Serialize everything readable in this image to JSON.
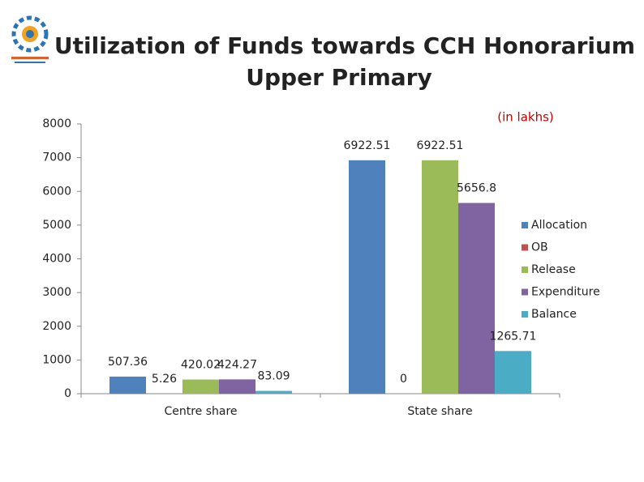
{
  "chart_data": {
    "type": "bar",
    "title": "Utilization of Funds towards CCH Honorarium",
    "subtitle": "Upper Primary",
    "note": "(in lakhs)",
    "categories": [
      "Centre share",
      "State share"
    ],
    "series": [
      {
        "name": "Allocation",
        "color": "#4f81bd",
        "values": [
          507.36,
          6922.51
        ]
      },
      {
        "name": "OB",
        "color": "#c0504d",
        "values": [
          5.26,
          0
        ]
      },
      {
        "name": "Release",
        "color": "#9bbb59",
        "values": [
          420.02,
          6922.51
        ]
      },
      {
        "name": "Expenditure",
        "color": "#8064a2",
        "values": [
          424.27,
          5656.8
        ]
      },
      {
        "name": "Balance",
        "color": "#4bacc6",
        "values": [
          83.09,
          1265.71
        ]
      }
    ],
    "ylim": [
      0,
      8000
    ],
    "yticks": [
      0,
      1000,
      2000,
      3000,
      4000,
      5000,
      6000,
      7000,
      8000
    ],
    "grid": false,
    "legend": "right"
  }
}
